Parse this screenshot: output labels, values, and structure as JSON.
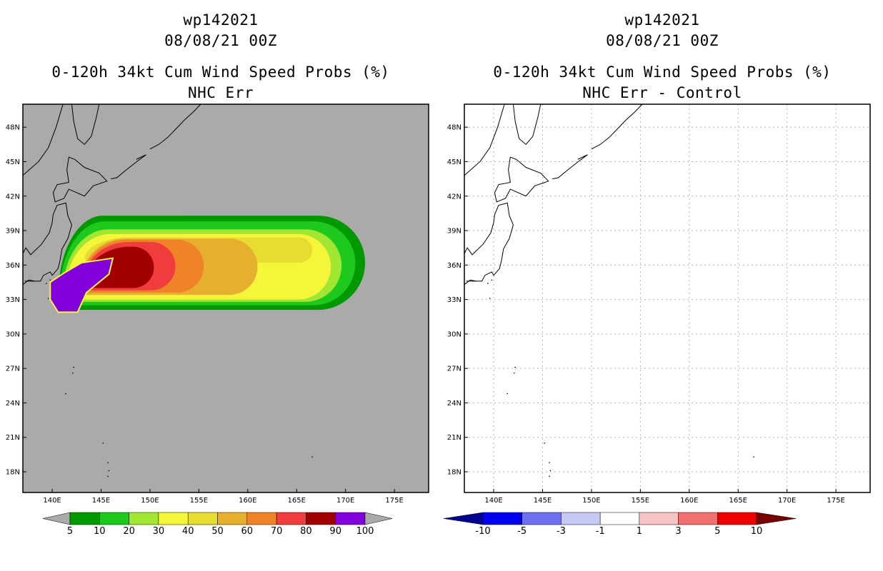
{
  "chart_data": [
    {
      "type": "heatmap",
      "storm_id": "wp142021",
      "datetime": "08/08/21 00Z",
      "title": "0-120h 34kt Cum Wind Speed Probs (%)",
      "subtitle": "NHC Err",
      "xlabel": "",
      "ylabel": "",
      "xlim": [
        137,
        178.5
      ],
      "ylim": [
        16.2,
        50
      ],
      "x_ticks": [
        "140E",
        "145E",
        "150E",
        "155E",
        "160E",
        "165E",
        "170E",
        "175E"
      ],
      "y_ticks": [
        "18N",
        "21N",
        "24N",
        "27N",
        "30N",
        "33N",
        "36N",
        "39N",
        "42N",
        "45N",
        "48N"
      ],
      "colorbar": {
        "levels": [
          5,
          10,
          20,
          30,
          40,
          50,
          60,
          70,
          80,
          90,
          100
        ],
        "labels": [
          "5",
          "10",
          "20",
          "30",
          "40",
          "50",
          "60",
          "70",
          "80",
          "90",
          "100"
        ],
        "colors": [
          "#009a00",
          "#1ec91e",
          "#a0e632",
          "#f5f53a",
          "#e6dc32",
          "#e6af2d",
          "#f08228",
          "#f03c3c",
          "#a00000",
          "#8200dc"
        ],
        "below_color": "#aaaaaa",
        "above_color": "#aaaaaa"
      },
      "background_color": "#aaaaaa",
      "note": "probability swath extends from about 141E 33N eastward to about 172E 38N; maximum (100%) near 141-146E 33-36N"
    },
    {
      "type": "heatmap",
      "storm_id": "wp142021",
      "datetime": "08/08/21 00Z",
      "title": "0-120h 34kt Cum Wind Speed Probs (%)",
      "subtitle": "NHC Err - Control",
      "xlabel": "",
      "ylabel": "",
      "xlim": [
        137,
        178.5
      ],
      "ylim": [
        16.2,
        50
      ],
      "x_ticks": [
        "140E",
        "145E",
        "150E",
        "155E",
        "160E",
        "165E",
        "170E",
        "175E"
      ],
      "y_ticks": [
        "18N",
        "21N",
        "24N",
        "27N",
        "30N",
        "33N",
        "36N",
        "39N",
        "42N",
        "45N",
        "48N"
      ],
      "colorbar": {
        "levels": [
          -10,
          -5,
          -3,
          -1,
          1,
          3,
          5,
          10
        ],
        "labels": [
          "-10",
          "-5",
          "-3",
          "-1",
          "1",
          "3",
          "5",
          "10"
        ],
        "colors": [
          "#0000f0",
          "#6e6ef0",
          "#c8c8f5",
          "#ffffff",
          "#f5c3c3",
          "#f07070",
          "#f00000"
        ],
        "below_color": "#000090",
        "above_color": "#780000"
      },
      "grid": true,
      "background_color": "#ffffff",
      "note": "difference field is within -1..1 everywhere (all white)"
    }
  ]
}
